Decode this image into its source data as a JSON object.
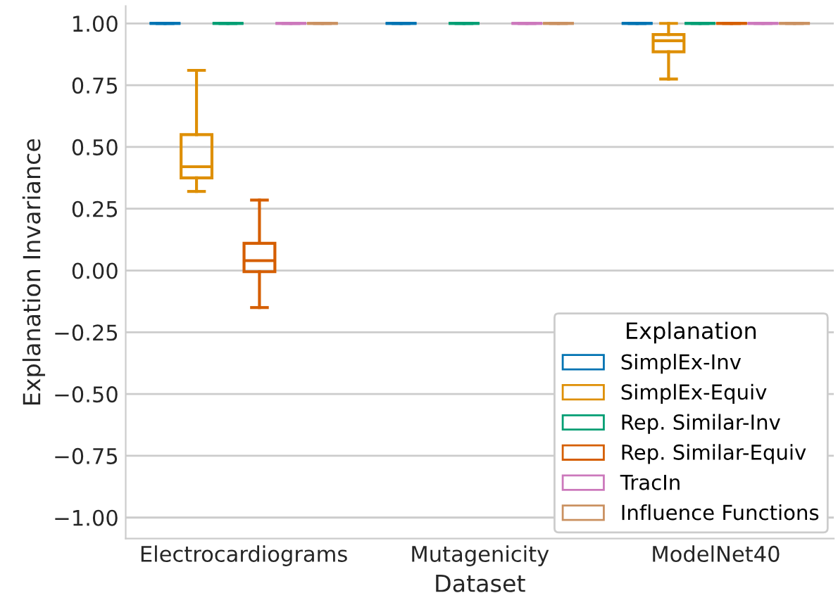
{
  "chart_data": {
    "type": "box",
    "xlabel": "Dataset",
    "ylabel": "Explanation Invariance",
    "legend_title": "Explanation",
    "categories": [
      "Electrocardiograms",
      "Mutagenicity",
      "ModelNet40"
    ],
    "ylim": [
      -1.085,
      1.07
    ],
    "yticks": [
      {
        "value": 1,
        "label": "1.00"
      },
      {
        "value": 0.75,
        "label": "0.75"
      },
      {
        "value": 0.5,
        "label": "0.50"
      },
      {
        "value": 0.25,
        "label": "0.25"
      },
      {
        "value": 0,
        "label": "0.00"
      },
      {
        "value": -0.25,
        "label": "−0.25"
      },
      {
        "value": -0.5,
        "label": "−0.50"
      },
      {
        "value": -0.75,
        "label": "−0.75"
      },
      {
        "value": -1,
        "label": "−1.00"
      }
    ],
    "grid": "y",
    "legend": "bottom right",
    "series": [
      {
        "name": "SimplEx-Inv",
        "color": "#0173b2",
        "boxes": [
          {
            "low": 1,
            "q1": 1,
            "median": 1,
            "q3": 1,
            "high": 1
          },
          {
            "low": 1,
            "q1": 1,
            "median": 1,
            "q3": 1,
            "high": 1
          },
          {
            "low": 1,
            "q1": 1,
            "median": 1,
            "q3": 1,
            "high": 1
          }
        ]
      },
      {
        "name": "SimplEx-Equiv",
        "color": "#de8f05",
        "boxes": [
          {
            "low": 0.32,
            "q1": 0.375,
            "median": 0.42,
            "q3": 0.55,
            "high": 0.81
          },
          null,
          {
            "low": 0.775,
            "q1": 0.885,
            "median": 0.93,
            "q3": 0.955,
            "high": 1
          }
        ]
      },
      {
        "name": "Rep. Similar-Inv",
        "color": "#029e73",
        "boxes": [
          {
            "low": 1,
            "q1": 1,
            "median": 1,
            "q3": 1,
            "high": 1
          },
          {
            "low": 1,
            "q1": 1,
            "median": 1,
            "q3": 1,
            "high": 1
          },
          {
            "low": 1,
            "q1": 1,
            "median": 1,
            "q3": 1,
            "high": 1
          }
        ]
      },
      {
        "name": "Rep. Similar-Equiv",
        "color": "#d55e00",
        "boxes": [
          {
            "low": -0.15,
            "q1": -0.005,
            "median": 0.04,
            "q3": 0.11,
            "high": 0.285
          },
          null,
          {
            "low": 1,
            "q1": 1,
            "median": 1,
            "q3": 1,
            "high": 1
          }
        ]
      },
      {
        "name": "TracIn",
        "color": "#cc78bc",
        "boxes": [
          {
            "low": 1,
            "q1": 1,
            "median": 1,
            "q3": 1,
            "high": 1
          },
          {
            "low": 1,
            "q1": 1,
            "median": 1,
            "q3": 1,
            "high": 1
          },
          {
            "low": 1,
            "q1": 1,
            "median": 1,
            "q3": 1,
            "high": 1
          }
        ]
      },
      {
        "name": "Influence Functions",
        "color": "#ca9161",
        "boxes": [
          {
            "low": 1,
            "q1": 1,
            "median": 1,
            "q3": 1,
            "high": 1
          },
          {
            "low": 1,
            "q1": 1,
            "median": 1,
            "q3": 1,
            "high": 1
          },
          {
            "low": 1,
            "q1": 1,
            "median": 1,
            "q3": 1,
            "high": 1
          }
        ]
      }
    ]
  }
}
